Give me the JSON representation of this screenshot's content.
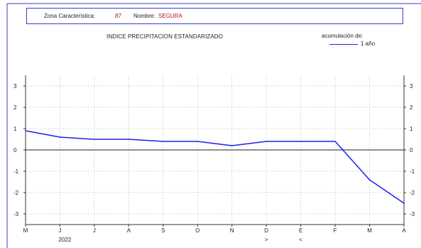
{
  "header": {
    "zona_label": "Zona Característica:",
    "zona_value": "87",
    "nombre_label": "Nombre:",
    "nombre_value": "SEGURA"
  },
  "chart_data": {
    "type": "line",
    "title": "INDICE  PRECIPITACION  ESTANDARIZADO",
    "legend_title": "acumulación de:",
    "legend_position": "top-right",
    "categories": [
      "M",
      "J",
      "J",
      "A",
      "S",
      "O",
      "N",
      "D",
      "E",
      "F",
      "M",
      "A"
    ],
    "sublabels": [
      "",
      "2022",
      "",
      "",
      "",
      "",
      "",
      ">",
      "<",
      "",
      "",
      ""
    ],
    "ylim": [
      -3.5,
      3.5
    ],
    "yticks": [
      3,
      2,
      1,
      0,
      -1,
      -2,
      -3
    ],
    "grid": true,
    "series": [
      {
        "name": "1 año",
        "color": "#1e1ef0",
        "values": [
          0.9,
          0.6,
          0.5,
          0.5,
          0.4,
          0.4,
          0.2,
          0.4,
          0.4,
          0.4,
          -1.4,
          -2.5
        ]
      }
    ]
  },
  "colors": {
    "series": "#1e1ef0",
    "frame": "#3b3bc8",
    "highlight_text": "#b01818",
    "grid": "#c8c8c8"
  }
}
